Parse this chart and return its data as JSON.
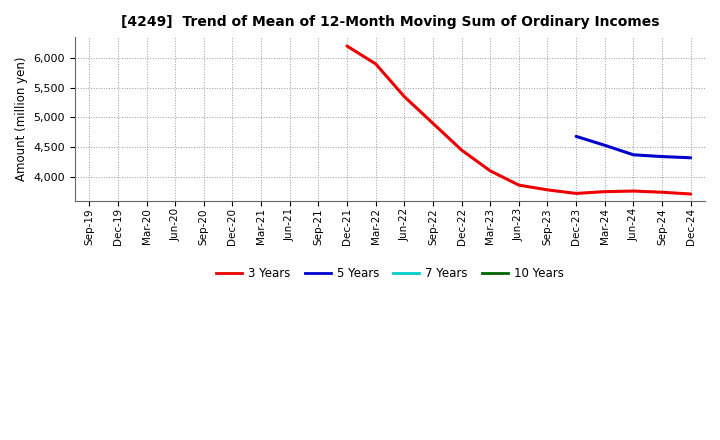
{
  "title": "[4249]  Trend of Mean of 12-Month Moving Sum of Ordinary Incomes",
  "ylabel": "Amount (million yen)",
  "background_color": "#ffffff",
  "grid_color": "#999999",
  "ylim": [
    3600,
    6350
  ],
  "yticks": [
    4000,
    4500,
    5000,
    5500,
    6000
  ],
  "x_labels": [
    "Sep-19",
    "Dec-19",
    "Mar-20",
    "Jun-20",
    "Sep-20",
    "Dec-20",
    "Mar-21",
    "Jun-21",
    "Sep-21",
    "Dec-21",
    "Mar-22",
    "Jun-22",
    "Sep-22",
    "Dec-22",
    "Mar-23",
    "Jun-23",
    "Sep-23",
    "Dec-23",
    "Mar-24",
    "Jun-24",
    "Sep-24",
    "Dec-24"
  ],
  "series_3y": {
    "label": "3 Years",
    "color": "#ee0000",
    "data_x": [
      "Dec-21",
      "Mar-22",
      "Jun-22",
      "Sep-22",
      "Dec-22",
      "Mar-23",
      "Jun-23",
      "Sep-23",
      "Dec-23",
      "Mar-24",
      "Jun-24",
      "Sep-24",
      "Dec-24"
    ],
    "data_y": [
      6200,
      5900,
      5350,
      4900,
      4450,
      4100,
      3860,
      3780,
      3720,
      3750,
      3760,
      3740,
      3710
    ]
  },
  "series_5y": {
    "label": "5 Years",
    "color": "#0000cc",
    "data_x": [
      "Dec-23",
      "Mar-24",
      "Jun-24",
      "Sep-24",
      "Dec-24"
    ],
    "data_y": [
      4680,
      4530,
      4370,
      4340,
      4320
    ]
  },
  "series_7y": {
    "label": "7 Years",
    "color": "#00cccc",
    "data_x": [],
    "data_y": []
  },
  "series_10y": {
    "label": "10 Years",
    "color": "#006600",
    "data_x": [],
    "data_y": []
  },
  "legend_colors": [
    "#ee0000",
    "#0000cc",
    "#00cccc",
    "#006600"
  ],
  "legend_labels": [
    "3 Years",
    "5 Years",
    "7 Years",
    "10 Years"
  ]
}
